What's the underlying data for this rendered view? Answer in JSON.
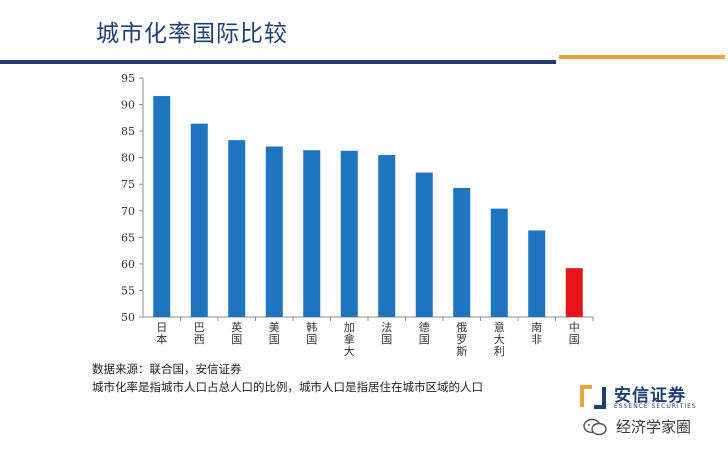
{
  "slide": {
    "title": "城市化率国际比较"
  },
  "notes": {
    "source": "数据来源：联合国，安信证券",
    "definition": "城市化率是指城市人口占总人口的比例，城市人口是指居住在城市区域的人口"
  },
  "logo": {
    "name_cn": "安信证券",
    "name_en": "ESSENCE SECURITIES"
  },
  "watermark": {
    "text": "经济学家圈"
  },
  "colors": {
    "brand": "#1f3f73",
    "accent": "#e8a33c",
    "bar": "#1f74bf",
    "highlight": "#e8141c"
  },
  "chart_data": {
    "type": "bar",
    "title": "",
    "xlabel": "",
    "ylabel": "",
    "categories": [
      "日本",
      "巴西",
      "英国",
      "美国",
      "韩国",
      "加拿大",
      "法国",
      "德国",
      "俄罗斯",
      "意大利",
      "南非",
      "中国"
    ],
    "values": [
      91.6,
      86.4,
      83.3,
      82.1,
      81.4,
      81.3,
      80.5,
      77.2,
      74.3,
      70.4,
      66.3,
      59.2
    ],
    "highlight_category": "中国",
    "ylim": [
      50,
      95
    ],
    "yticks": [
      50,
      55,
      60,
      65,
      70,
      75,
      80,
      85,
      90,
      95
    ],
    "grid": false,
    "legend": "none"
  }
}
